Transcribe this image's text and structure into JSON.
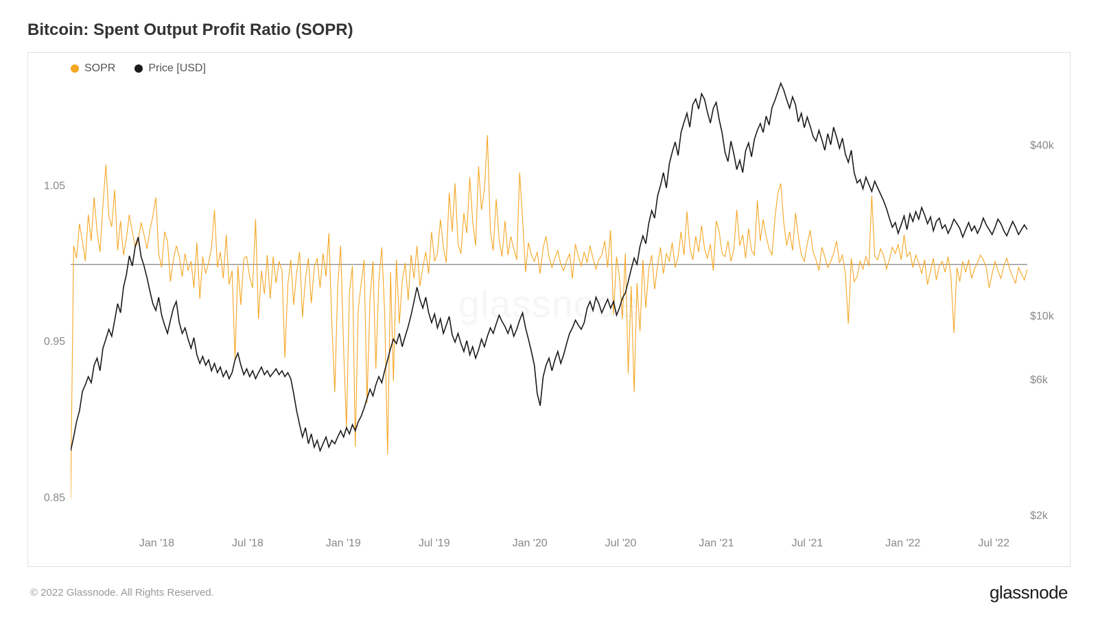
{
  "chart": {
    "title": "Bitcoin: Spent Output Profit Ratio (SOPR)",
    "type": "line-dual-axis",
    "background_color": "#ffffff",
    "border_color": "#e0e0e0",
    "watermark_text": "glassnode",
    "watermark_color": "rgba(0,0,0,0.035)",
    "legend": [
      {
        "label": "SOPR",
        "color": "#f5a623"
      },
      {
        "label": "Price [USD]",
        "color": "#1a1a1a"
      }
    ],
    "axis_label_color": "#888888",
    "axis_fontsize": 16,
    "title_fontsize": 24,
    "title_color": "#333333",
    "x": {
      "ticks": [
        "Jan '18",
        "Jul '18",
        "Jan '19",
        "Jul '19",
        "Jan '20",
        "Jul '20",
        "Jan '21",
        "Jul '21",
        "Jan '22",
        "Jul '22"
      ],
      "tick_positions_pct": [
        9,
        18.5,
        28.5,
        38,
        48,
        57.5,
        67.5,
        77,
        87,
        96.5
      ],
      "range_start": "Oct 2017",
      "range_end": "Aug 2022"
    },
    "left_axis": {
      "series": "SOPR",
      "scale": "linear",
      "min": 0.83,
      "max": 1.12,
      "ticks": [
        {
          "value": 0.85,
          "label": "0.85",
          "pos_pct": 93.1
        },
        {
          "value": 0.95,
          "label": "0.95",
          "pos_pct": 58.6
        },
        {
          "value": 1.05,
          "label": "1.05",
          "pos_pct": 24.1
        }
      ],
      "reference_line": {
        "value": 1.0,
        "pos_pct": 41.4,
        "color": "#666666"
      }
    },
    "right_axis": {
      "series": "Price [USD]",
      "scale": "log",
      "min": 1800,
      "max": 70000,
      "ticks": [
        {
          "value": 2000,
          "label": "$2k",
          "pos_pct": 97.1
        },
        {
          "value": 6000,
          "label": "$6k",
          "pos_pct": 67.0
        },
        {
          "value": 10000,
          "label": "$10k",
          "pos_pct": 53.0
        },
        {
          "value": 40000,
          "label": "$40k",
          "pos_pct": 15.1
        }
      ]
    },
    "series": {
      "sopr": {
        "color": "#f5a623",
        "line_width": 1.1,
        "data": [
          0.85,
          1.012,
          1.004,
          1.026,
          1.015,
          1.002,
          1.032,
          1.015,
          1.043,
          1.021,
          1.008,
          1.038,
          1.064,
          1.031,
          1.024,
          1.048,
          1.009,
          1.028,
          1.006,
          1.017,
          1.032,
          1.021,
          1.011,
          1.015,
          1.027,
          1.019,
          1.01,
          1.022,
          1.031,
          1.043,
          1.007,
          0.998,
          1.021,
          1.015,
          0.989,
          1.003,
          1.012,
          1.005,
          0.992,
          1.007,
          0.996,
          1.002,
          0.985,
          1.014,
          0.978,
          1.005,
          0.994,
          1.001,
          1.011,
          1.035,
          0.998,
          1.008,
          0.991,
          1.019,
          0.987,
          0.996,
          0.939,
          0.999,
          0.974,
          1.004,
          1.005,
          0.992,
          0.985,
          1.029,
          0.965,
          0.996,
          0.981,
          1.006,
          0.978,
          1.005,
          0.988,
          1.002,
          0.996,
          0.94,
          0.987,
          1.003,
          0.974,
          0.995,
          1.008,
          0.966,
          0.991,
          1.004,
          0.975,
          0.998,
          1.004,
          0.985,
          1.007,
          0.992,
          1.02,
          0.962,
          0.918,
          0.986,
          1.012,
          0.946,
          0.895,
          0.982,
          0.999,
          0.883,
          0.971,
          0.988,
          1.003,
          0.911,
          0.978,
          1.002,
          0.933,
          0.989,
          1.011,
          0.969,
          0.878,
          0.995,
          0.925,
          1.003,
          0.962,
          0.989,
          1.001,
          0.977,
          1.006,
          0.991,
          1.012,
          0.986,
          0.998,
          1.008,
          0.994,
          1.021,
          1.002,
          1.007,
          1.029,
          1.011,
          1.001,
          1.046,
          1.021,
          1.052,
          1.013,
          1.007,
          1.033,
          1.02,
          1.056,
          1.028,
          1.012,
          1.063,
          1.035,
          1.048,
          1.083,
          1.022,
          1.009,
          1.042,
          1.016,
          1.005,
          1.028,
          1.006,
          1.018,
          1.01,
          1.003,
          1.059,
          1.029,
          0.995,
          1.014,
          1.006,
          1.002,
          1.008,
          0.994,
          1.011,
          1.018,
          1.005,
          0.998,
          1.004,
          1.009,
          1.0,
          0.996,
          1.002,
          1.007,
          0.991,
          1.013,
          1.005,
          0.999,
          1.008,
          1.001,
          1.012,
          1.004,
          0.997,
          1.003,
          1.006,
          1.015,
          0.998,
          1.022,
          0.968,
          1.005,
          0.992,
          0.965,
          1.007,
          0.93,
          0.986,
          0.918,
          0.988,
          0.957,
          1.003,
          0.972,
          0.997,
          1.006,
          0.984,
          0.999,
          1.011,
          0.994,
          1.007,
          1.002,
          1.014,
          0.998,
          1.005,
          1.021,
          1.006,
          1.034,
          1.011,
          1.003,
          1.018,
          1.008,
          1.025,
          1.01,
          1.004,
          1.013,
          0.996,
          1.028,
          1.021,
          1.007,
          1.005,
          1.015,
          1.002,
          1.01,
          1.035,
          1.012,
          1.019,
          1.004,
          1.023,
          1.009,
          1.006,
          1.041,
          1.015,
          1.029,
          1.018,
          1.01,
          1.006,
          1.03,
          1.046,
          1.052,
          1.027,
          1.012,
          1.021,
          1.009,
          1.033,
          1.018,
          1.006,
          1.002,
          1.013,
          1.022,
          1.008,
          1.003,
          0.996,
          1.011,
          1.005,
          0.998,
          1.002,
          1.007,
          1.015,
          1.001,
          1.006,
          0.994,
          0.962,
          1.004,
          0.989,
          0.992,
          1.002,
          0.997,
          1.005,
          0.999,
          1.044,
          1.005,
          1.003,
          1.01,
          1.006,
          0.997,
          1.003,
          1.011,
          1.007,
          1.013,
          1.003,
          1.019,
          1.005,
          1.008,
          0.998,
          1.006,
          1.001,
          0.994,
          1.003,
          0.987,
          0.996,
          1.004,
          0.99,
          0.999,
          1.002,
          0.995,
          1.005,
          0.992,
          0.956,
          0.998,
          0.989,
          1.002,
          0.995,
          1.003,
          0.991,
          0.997,
          1.001,
          1.006,
          1.003,
          0.998,
          0.985,
          0.994,
          1.002,
          0.996,
          0.991,
          0.999,
          1.004,
          0.997,
          0.992,
          0.988,
          0.998,
          0.994,
          0.99,
          0.997
        ]
      },
      "price_usd": {
        "color": "#1a1a1a",
        "line_width": 1.6,
        "data": [
          3400,
          3800,
          4300,
          4700,
          5500,
          5800,
          6200,
          5900,
          6800,
          7200,
          6500,
          7800,
          8400,
          9100,
          8600,
          9800,
          11200,
          10400,
          12800,
          14200,
          16500,
          15200,
          17800,
          19200,
          16400,
          15200,
          13800,
          12400,
          11200,
          10600,
          11800,
          10200,
          9400,
          8800,
          9800,
          10800,
          11400,
          9600,
          8800,
          9200,
          8400,
          7800,
          8500,
          7400,
          6900,
          7300,
          6800,
          7100,
          6500,
          6900,
          6400,
          6700,
          6200,
          6500,
          6100,
          6400,
          7100,
          7500,
          6800,
          6300,
          6600,
          6200,
          6500,
          6100,
          6400,
          6700,
          6300,
          6500,
          6200,
          6400,
          6600,
          6300,
          6500,
          6200,
          6400,
          6100,
          5400,
          4700,
          4200,
          3800,
          4100,
          3600,
          3900,
          3500,
          3700,
          3400,
          3600,
          3800,
          3500,
          3700,
          3600,
          3800,
          4000,
          3800,
          4100,
          3900,
          4200,
          4000,
          4300,
          4500,
          4800,
          5200,
          5600,
          5300,
          5800,
          6200,
          5900,
          6500,
          7100,
          7800,
          8400,
          8100,
          8800,
          7900,
          8600,
          9300,
          10200,
          11400,
          12800,
          11600,
          10800,
          11800,
          10400,
          9600,
          10300,
          9200,
          9900,
          8800,
          9400,
          10100,
          8700,
          8200,
          8800,
          8100,
          7600,
          8300,
          7400,
          7900,
          7200,
          7700,
          8400,
          7900,
          8600,
          9200,
          8800,
          9500,
          10200,
          9700,
          9300,
          8800,
          9400,
          8600,
          9100,
          9800,
          10400,
          9200,
          8400,
          7600,
          6800,
          5400,
          4900,
          6200,
          6800,
          7200,
          6500,
          7100,
          7600,
          6900,
          7400,
          8100,
          8800,
          9200,
          9800,
          9400,
          9100,
          9600,
          10800,
          11400,
          10600,
          11800,
          11200,
          10400,
          11000,
          11600,
          10800,
          11400,
          10200,
          10800,
          11700,
          12200,
          13400,
          14800,
          16200,
          15400,
          17800,
          19400,
          18200,
          21500,
          23800,
          22400,
          26800,
          29200,
          32400,
          28600,
          34800,
          38200,
          41500,
          37200,
          44800,
          48600,
          52400,
          46800,
          56200,
          58800,
          54200,
          61400,
          58600,
          52800,
          48400,
          54600,
          57200,
          49800,
          44600,
          38200,
          35400,
          41800,
          37600,
          33200,
          35800,
          32400,
          38600,
          41200,
          36800,
          42400,
          45600,
          48200,
          44800,
          51200,
          47600,
          54800,
          58200,
          62400,
          66800,
          63200,
          58400,
          54600,
          59800,
          56200,
          48800,
          52400,
          46600,
          50800,
          47200,
          43400,
          41800,
          45600,
          42200,
          38800,
          44400,
          40600,
          46800,
          43200,
          39400,
          42800,
          37600,
          35200,
          38800,
          32400,
          29800,
          30600,
          28400,
          31200,
          29400,
          27800,
          30200,
          28600,
          27200,
          25800,
          24200,
          22400,
          20800,
          21600,
          19800,
          21200,
          22800,
          20400,
          23200,
          21800,
          23600,
          22200,
          24400,
          23000,
          21400,
          22600,
          20200,
          21800,
          22400,
          20600,
          21200,
          19800,
          20800,
          22200,
          21400,
          20600,
          19200,
          20400,
          21600,
          20200,
          21000,
          19800,
          20800,
          22400,
          21200,
          20400,
          19600,
          20800,
          22200,
          21400,
          20200,
          19400,
          20600,
          21800,
          20800,
          19600,
          20400,
          21200,
          20400
        ]
      }
    }
  },
  "footer": {
    "copyright": "© 2022 Glassnode. All Rights Reserved.",
    "brand": "glassnode"
  }
}
